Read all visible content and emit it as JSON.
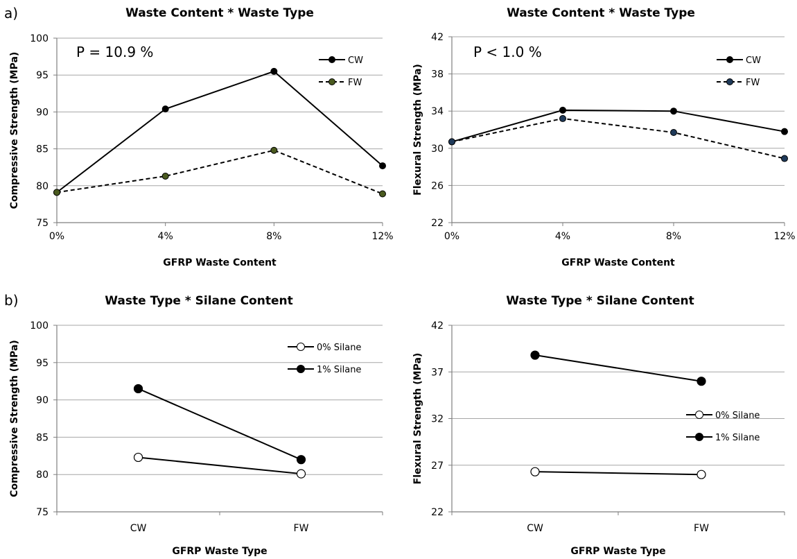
{
  "panel_labels": [
    "a)",
    "b)"
  ],
  "chart_data": [
    {
      "type": "line",
      "title": "Waste Content * Waste Type",
      "xlabel": "GFRP Waste Content",
      "ylabel": "Compressive Strength (MPa)",
      "annotation": "P = 10.9 %",
      "categories": [
        "0%",
        "4%",
        "8%",
        "12%"
      ],
      "ylim": [
        75,
        100
      ],
      "yticks": [
        "75",
        "80",
        "85",
        "90",
        "95",
        "100"
      ],
      "grid": true,
      "legend_position": "top-right",
      "series": [
        {
          "name": "CW",
          "values": [
            79.1,
            90.4,
            95.5,
            82.7
          ],
          "style": "solid",
          "color": "#000000",
          "marker": "#000000"
        },
        {
          "name": "FW",
          "values": [
            79.1,
            81.3,
            84.8,
            78.9
          ],
          "style": "dashed",
          "color": "#000000",
          "marker": "#4a5a1f"
        }
      ]
    },
    {
      "type": "line",
      "title": "Waste Content * Waste Type",
      "xlabel": "GFRP Waste Content",
      "ylabel": "Flexural Strength (MPa)",
      "annotation": "P < 1.0 %",
      "categories": [
        "0%",
        "4%",
        "8%",
        "12%"
      ],
      "ylim": [
        22,
        42
      ],
      "yticks": [
        "22",
        "26",
        "30",
        "34",
        "38",
        "42"
      ],
      "grid": true,
      "legend_position": "top-right",
      "series": [
        {
          "name": "CW",
          "values": [
            30.7,
            34.1,
            34.0,
            31.8
          ],
          "style": "solid",
          "color": "#000000",
          "marker": "#000000"
        },
        {
          "name": "FW",
          "values": [
            30.7,
            33.2,
            31.7,
            28.9
          ],
          "style": "dashed",
          "color": "#000000",
          "marker": "#1f3a5a"
        }
      ]
    },
    {
      "type": "line",
      "title": "Waste Type * Silane Content",
      "xlabel": "GFRP Waste Type",
      "ylabel": "Compressive Strength (MPa)",
      "annotation": "",
      "categories": [
        "CW",
        "FW"
      ],
      "ylim": [
        75,
        100
      ],
      "yticks": [
        "75",
        "80",
        "85",
        "90",
        "95",
        "100"
      ],
      "grid": true,
      "legend_position": "top-right",
      "series": [
        {
          "name": "0% Silane",
          "values": [
            82.3,
            80.1
          ],
          "style": "solid",
          "color": "#000000",
          "marker": "#ffffff"
        },
        {
          "name": "1% Silane",
          "values": [
            91.5,
            82.0
          ],
          "style": "solid",
          "color": "#000000",
          "marker": "#000000"
        }
      ]
    },
    {
      "type": "line",
      "title": "Waste Type * Silane Content",
      "xlabel": "GFRP Waste Type",
      "ylabel": "Flexural Strength (MPa)",
      "annotation": "",
      "categories": [
        "CW",
        "FW"
      ],
      "ylim": [
        22,
        42
      ],
      "yticks": [
        "22",
        "27",
        "32",
        "37",
        "42"
      ],
      "grid": true,
      "legend_position": "middle-right",
      "series": [
        {
          "name": "0% Silane",
          "values": [
            26.3,
            26.0
          ],
          "style": "solid",
          "color": "#000000",
          "marker": "#ffffff"
        },
        {
          "name": "1% Silane",
          "values": [
            38.8,
            36.0
          ],
          "style": "solid",
          "color": "#000000",
          "marker": "#000000"
        }
      ]
    }
  ]
}
